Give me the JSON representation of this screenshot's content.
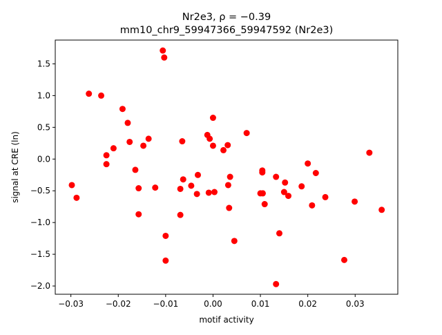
{
  "chart_data": {
    "type": "scatter",
    "title_prefix": "Nr2e3, ",
    "title_rho": "ρ = −0.39",
    "subtitle": "mm10_chr9_59947366_59947592 (Nr2e3)",
    "xlabel": "motif activity",
    "ylabel": "signal at CRE (ln)",
    "xlim": [
      -0.0333,
      0.039
    ],
    "ylim": [
      -2.13,
      1.875
    ],
    "x_ticks": [
      -0.03,
      -0.02,
      -0.01,
      0.0,
      0.01,
      0.02,
      0.03
    ],
    "x_tick_labels": [
      "−0.03",
      "−0.02",
      "−0.01",
      "0.00",
      "0.01",
      "0.02",
      "0.03"
    ],
    "y_ticks": [
      -2.0,
      -1.5,
      -1.0,
      -0.5,
      0.0,
      0.5,
      1.0,
      1.5
    ],
    "y_tick_labels": [
      "−2.0",
      "−1.5",
      "−1.0",
      "−0.5",
      "0.0",
      "0.5",
      "1.0",
      "1.5"
    ],
    "grid": false,
    "marker_color": "#ff0000",
    "points": [
      {
        "x": -0.0298,
        "y": -0.41
      },
      {
        "x": -0.0288,
        "y": -0.61
      },
      {
        "x": -0.0262,
        "y": 1.03
      },
      {
        "x": -0.0236,
        "y": 1.0
      },
      {
        "x": -0.0225,
        "y": 0.06
      },
      {
        "x": -0.0225,
        "y": -0.08
      },
      {
        "x": -0.021,
        "y": 0.17
      },
      {
        "x": -0.0191,
        "y": 0.79
      },
      {
        "x": -0.018,
        "y": 0.57
      },
      {
        "x": -0.0176,
        "y": 0.27
      },
      {
        "x": -0.0164,
        "y": -0.17
      },
      {
        "x": -0.0157,
        "y": -0.46
      },
      {
        "x": -0.0157,
        "y": -0.87
      },
      {
        "x": -0.0147,
        "y": 0.21
      },
      {
        "x": -0.0136,
        "y": 0.32
      },
      {
        "x": -0.0122,
        "y": -0.45
      },
      {
        "x": -0.0106,
        "y": 1.71
      },
      {
        "x": -0.0103,
        "y": 1.6
      },
      {
        "x": -0.01,
        "y": -1.21
      },
      {
        "x": -0.01,
        "y": -1.6
      },
      {
        "x": -0.0069,
        "y": -0.47
      },
      {
        "x": -0.0069,
        "y": -0.88
      },
      {
        "x": -0.0065,
        "y": 0.28
      },
      {
        "x": -0.0063,
        "y": -0.32
      },
      {
        "x": -0.0046,
        "y": -0.42
      },
      {
        "x": -0.0034,
        "y": -0.55
      },
      {
        "x": -0.0032,
        "y": -0.25
      },
      {
        "x": -0.0012,
        "y": 0.38
      },
      {
        "x": -0.0009,
        "y": -0.53
      },
      {
        "x": -0.0007,
        "y": 0.32
      },
      {
        "x": 0.0,
        "y": 0.65
      },
      {
        "x": 0.0,
        "y": 0.21
      },
      {
        "x": 0.0003,
        "y": -0.52
      },
      {
        "x": 0.0022,
        "y": 0.14
      },
      {
        "x": 0.0031,
        "y": 0.22
      },
      {
        "x": 0.0032,
        "y": -0.41
      },
      {
        "x": 0.0034,
        "y": -0.77
      },
      {
        "x": 0.0036,
        "y": -0.28
      },
      {
        "x": 0.0045,
        "y": -1.29
      },
      {
        "x": 0.0071,
        "y": 0.41
      },
      {
        "x": 0.01,
        "y": -0.54
      },
      {
        "x": 0.0104,
        "y": -0.18
      },
      {
        "x": 0.0104,
        "y": -0.21
      },
      {
        "x": 0.0105,
        "y": -0.54
      },
      {
        "x": 0.0109,
        "y": -0.71
      },
      {
        "x": 0.0133,
        "y": -0.28
      },
      {
        "x": 0.0133,
        "y": -1.97
      },
      {
        "x": 0.014,
        "y": -1.17
      },
      {
        "x": 0.015,
        "y": -0.52
      },
      {
        "x": 0.0152,
        "y": -0.37
      },
      {
        "x": 0.0159,
        "y": -0.58
      },
      {
        "x": 0.0187,
        "y": -0.43
      },
      {
        "x": 0.02,
        "y": -0.07
      },
      {
        "x": 0.0209,
        "y": -0.73
      },
      {
        "x": 0.0217,
        "y": -0.22
      },
      {
        "x": 0.0237,
        "y": -0.6
      },
      {
        "x": 0.0277,
        "y": -1.59
      },
      {
        "x": 0.0299,
        "y": -0.67
      },
      {
        "x": 0.033,
        "y": 0.1
      },
      {
        "x": 0.0356,
        "y": -0.8
      }
    ]
  }
}
